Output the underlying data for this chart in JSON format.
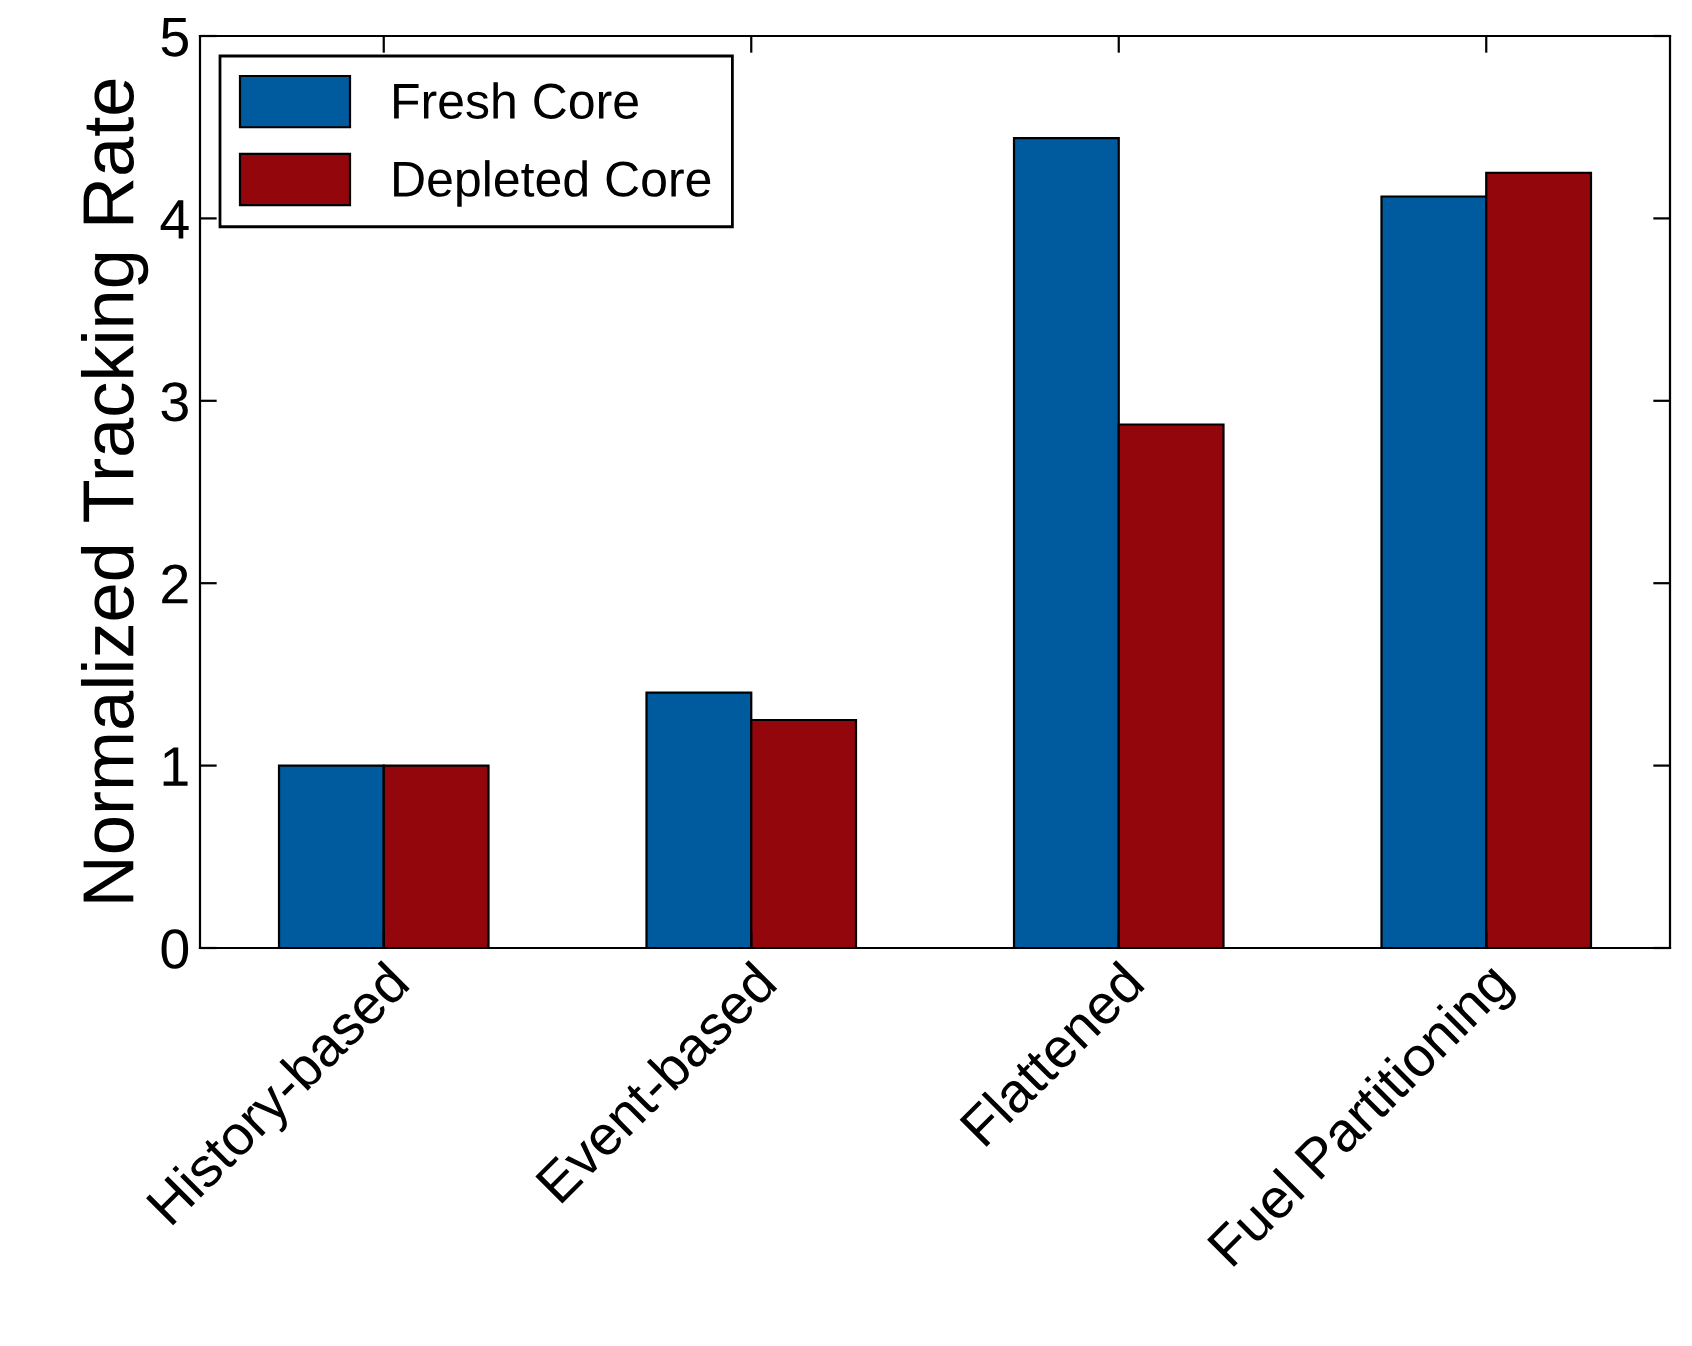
{
  "chart_data": {
    "type": "bar",
    "ylabel": "Normalized Tracking Rate",
    "categories": [
      "History-based",
      "Event-based",
      "Flattened",
      "Fuel Partitioning"
    ],
    "series": [
      {
        "name": "Fresh Core",
        "color": "#005a9e",
        "values": [
          1.0,
          1.4,
          4.44,
          4.12
        ]
      },
      {
        "name": "Depleted Core",
        "color": "#93060b",
        "values": [
          1.0,
          1.25,
          2.87,
          4.25
        ]
      }
    ],
    "ylim": [
      0,
      5
    ],
    "yticks": [
      0,
      1,
      2,
      3,
      4,
      5
    ],
    "grid": false,
    "legend": "top left"
  }
}
